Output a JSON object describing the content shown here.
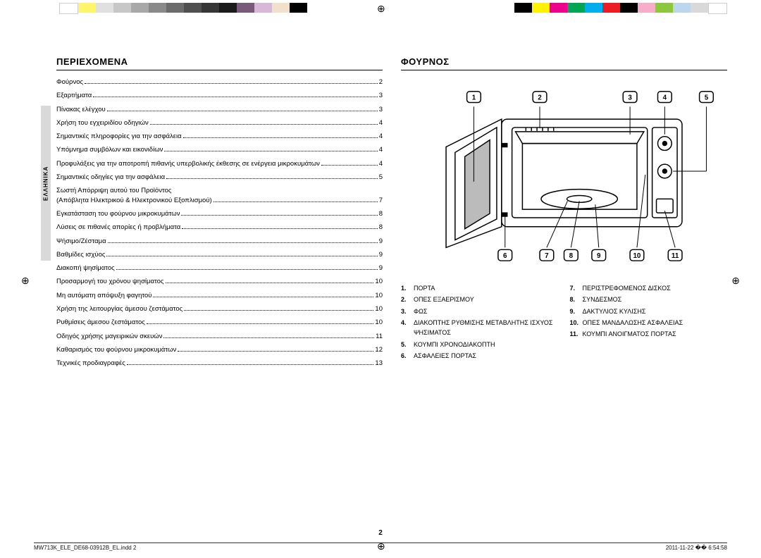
{
  "colorbar1": [
    "#ffffff",
    "#fff56a",
    "#e0e0e0",
    "#c7c7c7",
    "#a8a8a8",
    "#8a8a8a",
    "#6c6c6c",
    "#505050",
    "#363636",
    "#1a1a1a",
    "#7a5a7a",
    "#d8b8d8",
    "#f2e0cc",
    "#000000"
  ],
  "colorbar2": [
    "#000000",
    "#fff200",
    "#ec008c",
    "#00a651",
    "#00aeef",
    "#ed1c24",
    "#000000",
    "#f7adc9",
    "#8dc63f",
    "#bcd6ed",
    "#d9d9d9",
    "#ffffff"
  ],
  "sidetab": "ΕΛΛΗΝΙΚΑ",
  "left": {
    "heading": "ΠΕΡΙΕΧΟΜΕΝΑ",
    "toc": [
      {
        "t": "Φούρνος",
        "p": "2"
      },
      {
        "t": "Εξαρτήματα",
        "p": "3"
      },
      {
        "t": "Πίνακας ελέγχου",
        "p": "3"
      },
      {
        "t": "Χρήση του εγχειριδίου οδηγιών",
        "p": "4"
      },
      {
        "t": "Σημαντικές πληροφορίες για την ασφάλεια",
        "p": "4"
      },
      {
        "t": "Υπόμνημα συμβόλων και εικονιδίων",
        "p": "4"
      },
      {
        "t": "Προφυλάξεις για την αποτροπή πιθανής υπερβολικής έκθεσης σε ενέργεια μικροκυμάτων",
        "p": "4",
        "multi": true
      },
      {
        "t": "Σημαντικές οδηγίες για την ασφάλεια",
        "p": "5"
      },
      {
        "t": "Σωστή Απόρριψη αυτού του Προϊόντος\n(Απόβλητα Ηλεκτρικού & Ηλεκτρονικού Εξοπλισμού)",
        "p": "7",
        "multi": true
      },
      {
        "t": "Εγκατάσταση του φούρνου μικροκυμάτων",
        "p": "8"
      },
      {
        "t": "Λύσεις σε πιθανές απορίες ή προβλήματα",
        "p": "8"
      },
      {
        "t": "Ψήσιμο/Ζέσταμα",
        "p": "9"
      },
      {
        "t": "Βαθμίδες ισχύος",
        "p": "9"
      },
      {
        "t": "Διακοπή ψησίματος",
        "p": "9"
      },
      {
        "t": "Προσαρμογή του χρόνου ψησίματος",
        "p": "10"
      },
      {
        "t": "Μη αυτόματη απόψυξη φαγητού",
        "p": "10"
      },
      {
        "t": "Χρήση της λειτουργίας άμεσου ζεστάματος",
        "p": "10"
      },
      {
        "t": "Ρυθμίσεις άμεσου ζεστάματος",
        "p": "10"
      },
      {
        "t": "Οδηγός χρήσης μαγειρικών σκευών",
        "p": "11"
      },
      {
        "t": "Καθαρισμός του φούρνου μικροκυμάτων",
        "p": "12"
      },
      {
        "t": "Τεχνικές προδιαγραφές",
        "p": "13"
      }
    ]
  },
  "right": {
    "heading": "ΦΟΥΡΝΟΣ",
    "callouts": [
      "1",
      "2",
      "3",
      "4",
      "5",
      "6",
      "7",
      "8",
      "9",
      "10",
      "11"
    ],
    "legendL": [
      {
        "n": "1.",
        "t": "ΠΟΡΤΑ"
      },
      {
        "n": "2.",
        "t": "ΟΠΕΣ ΕΞΑΕΡΙΣΜΟΥ"
      },
      {
        "n": "3.",
        "t": "ΦΩΣ"
      },
      {
        "n": "4.",
        "t": "ΔΙΑΚΟΠΤΗΣ ΡΥΘΜΙΣΗΣ ΜΕΤΑΒΛΗΤΗΣ ΙΣΧΥΟΣ ΨΗΣΙΜΑΤΟΣ"
      },
      {
        "n": "5.",
        "t": "ΚΟΥΜΠΙ ΧΡΟΝΟΔΙΑΚΟΠΤΗ"
      },
      {
        "n": "6.",
        "t": "ΑΣΦΑΛΕΙΕΣ ΠΟΡΤΑΣ"
      }
    ],
    "legendR": [
      {
        "n": "7.",
        "t": "ΠΕΡΙΣΤΡΕΦΟΜΕΝΟΣ ΔΙΣΚΟΣ"
      },
      {
        "n": "8.",
        "t": "ΣΥΝΔΕΣΜΟΣ"
      },
      {
        "n": "9.",
        "t": "ΔΑΚΤΥΛΙΟΣ ΚΥΛΙΣΗΣ"
      },
      {
        "n": "10.",
        "t": "ΟΠΕΣ ΜΑΝΔΑΛΩΣΗΣ ΑΣΦΑΛΕΙΑΣ"
      },
      {
        "n": "11.",
        "t": "ΚΟΥΜΠΙ ΑΝΟΙΓΜΑΤΟΣ ΠΟΡΤΑΣ"
      }
    ]
  },
  "page_no": "2",
  "footer": {
    "file": "MW713K_ELE_DE68-03912B_EL.indd   2",
    "date": "2011-11-22   �� 6:54:58"
  }
}
